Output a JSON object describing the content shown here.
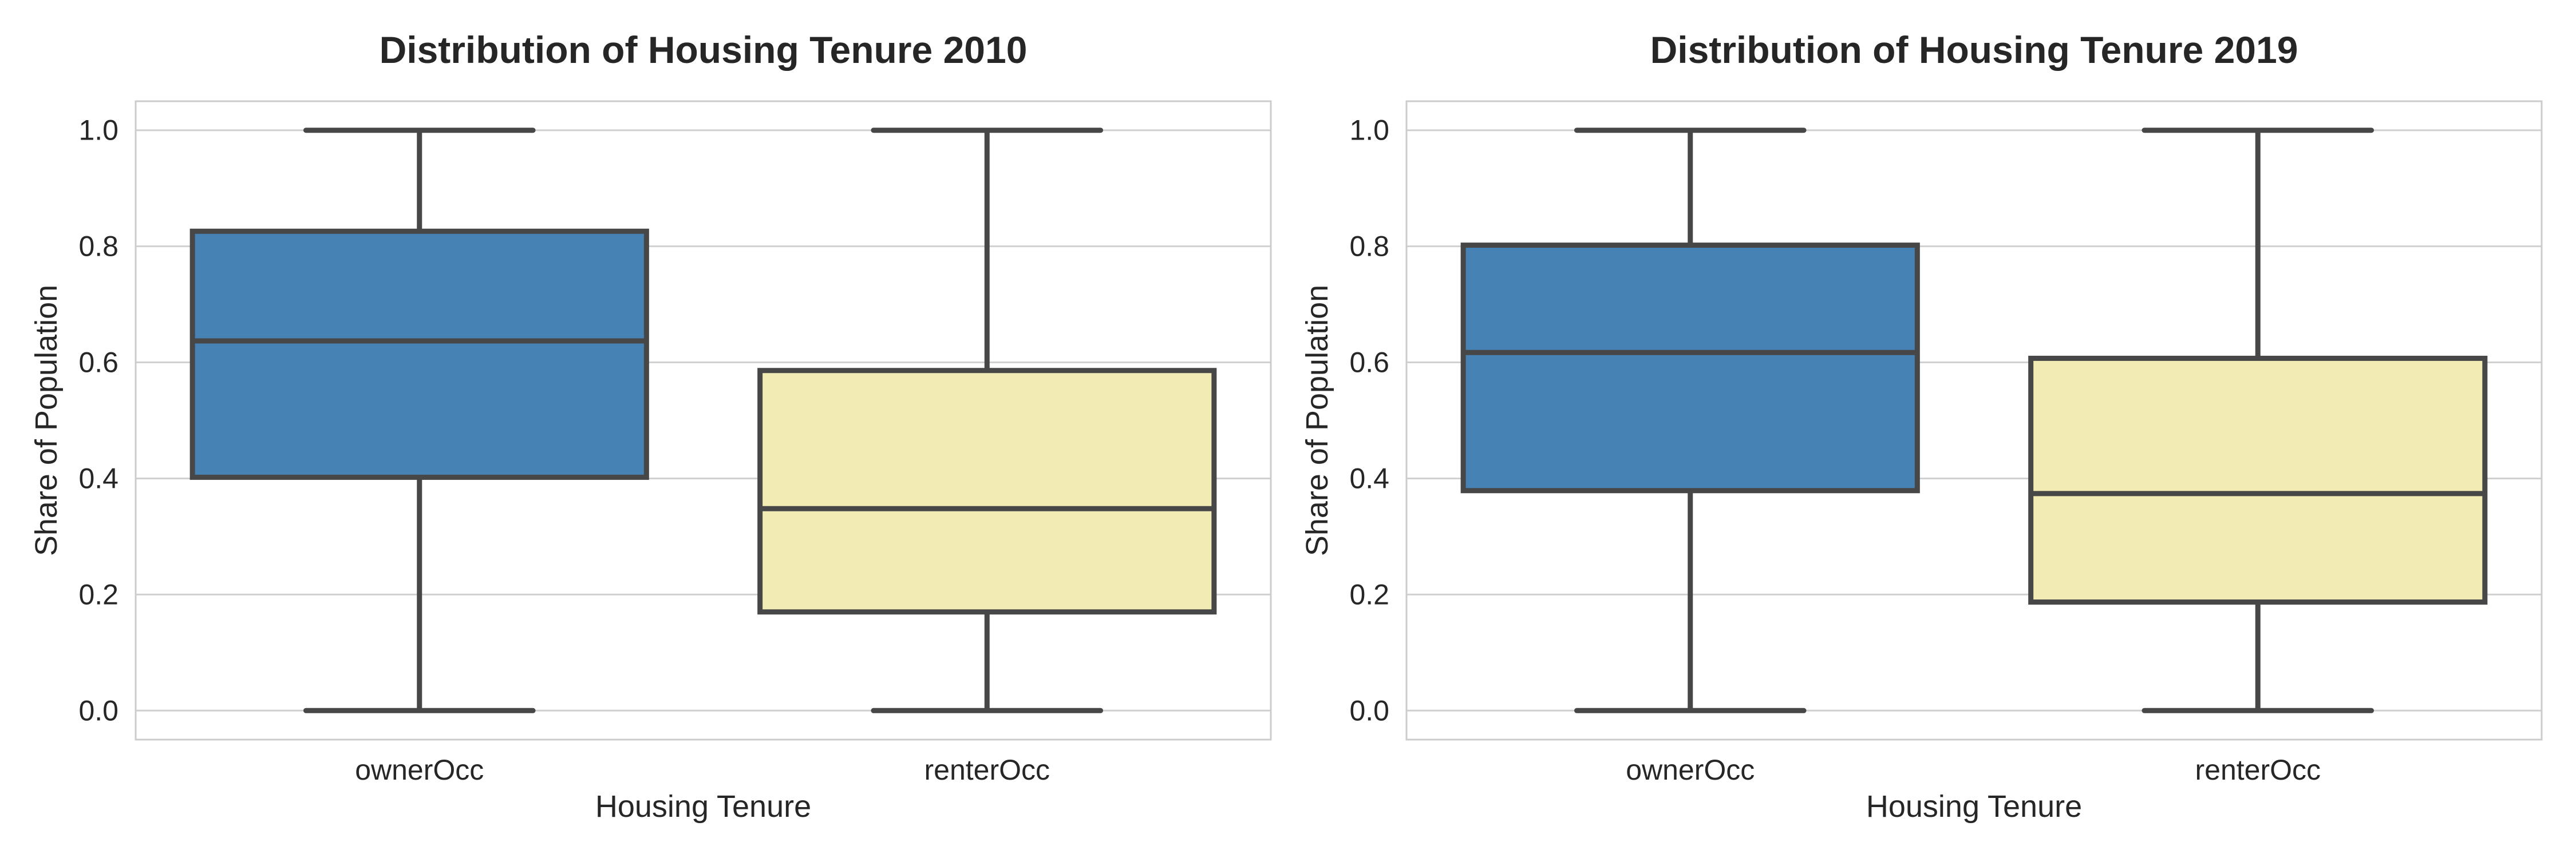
{
  "chart_data": [
    {
      "type": "box",
      "title": "Distribution of Housing Tenure 2010",
      "xlabel": "Housing Tenure",
      "ylabel": "Share of Population",
      "ylim": [
        -0.05,
        1.05
      ],
      "yticks": [
        "0.0",
        "0.2",
        "0.4",
        "0.6",
        "0.8",
        "1.0"
      ],
      "grid": "horizontal",
      "categories": [
        "ownerOcc",
        "renterOcc"
      ],
      "boxes": [
        {
          "name": "ownerOcc",
          "min": 0.0,
          "q1": 0.402,
          "median": 0.637,
          "q3": 0.826,
          "max": 1.0,
          "color": "#4682b4"
        },
        {
          "name": "renterOcc",
          "min": 0.0,
          "q1": 0.17,
          "median": 0.348,
          "q3": 0.586,
          "max": 1.0,
          "color": "#f3ebb4"
        }
      ]
    },
    {
      "type": "box",
      "title": "Distribution of Housing Tenure 2019",
      "xlabel": "Housing Tenure",
      "ylabel": "Share of Population",
      "ylim": [
        -0.05,
        1.05
      ],
      "yticks": [
        "0.0",
        "0.2",
        "0.4",
        "0.6",
        "0.8",
        "1.0"
      ],
      "grid": "horizontal",
      "categories": [
        "ownerOcc",
        "renterOcc"
      ],
      "boxes": [
        {
          "name": "ownerOcc",
          "min": 0.0,
          "q1": 0.379,
          "median": 0.617,
          "q3": 0.802,
          "max": 1.0,
          "color": "#4682b4"
        },
        {
          "name": "renterOcc",
          "min": 0.0,
          "q1": 0.187,
          "median": 0.374,
          "q3": 0.607,
          "max": 1.0,
          "color": "#f3ebb4"
        }
      ]
    }
  ]
}
